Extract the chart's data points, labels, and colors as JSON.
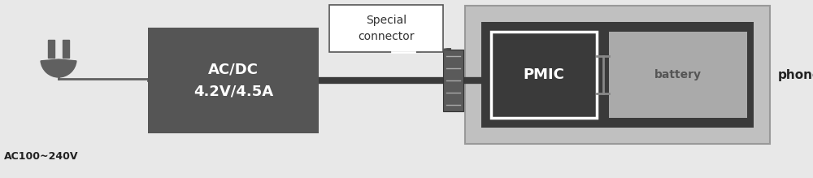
{
  "bg_color": "#e8e8e8",
  "fig_bg": "#e8e8e8",
  "plug_color": "#606060",
  "acdc_box_color": "#555555",
  "acdc_text": "AC/DC\n4.2V/4.5A",
  "acdc_text_color": "#ffffff",
  "phone_outer_color": "#c0c0c0",
  "phone_inner_color": "#3a3a3a",
  "pmic_box_color": "#3a3a3a",
  "pmic_border_color": "#ffffff",
  "pmic_text": "PMIC",
  "pmic_text_color": "#ffffff",
  "battery_box_color": "#aaaaaa",
  "battery_text": "battery",
  "battery_text_color": "#555555",
  "callout_bg": "#ffffff",
  "callout_border": "#555555",
  "ac_label": "AC100~240V",
  "phone_label": "phone",
  "label_color": "#222222",
  "connector_text": "Special\nconnector"
}
